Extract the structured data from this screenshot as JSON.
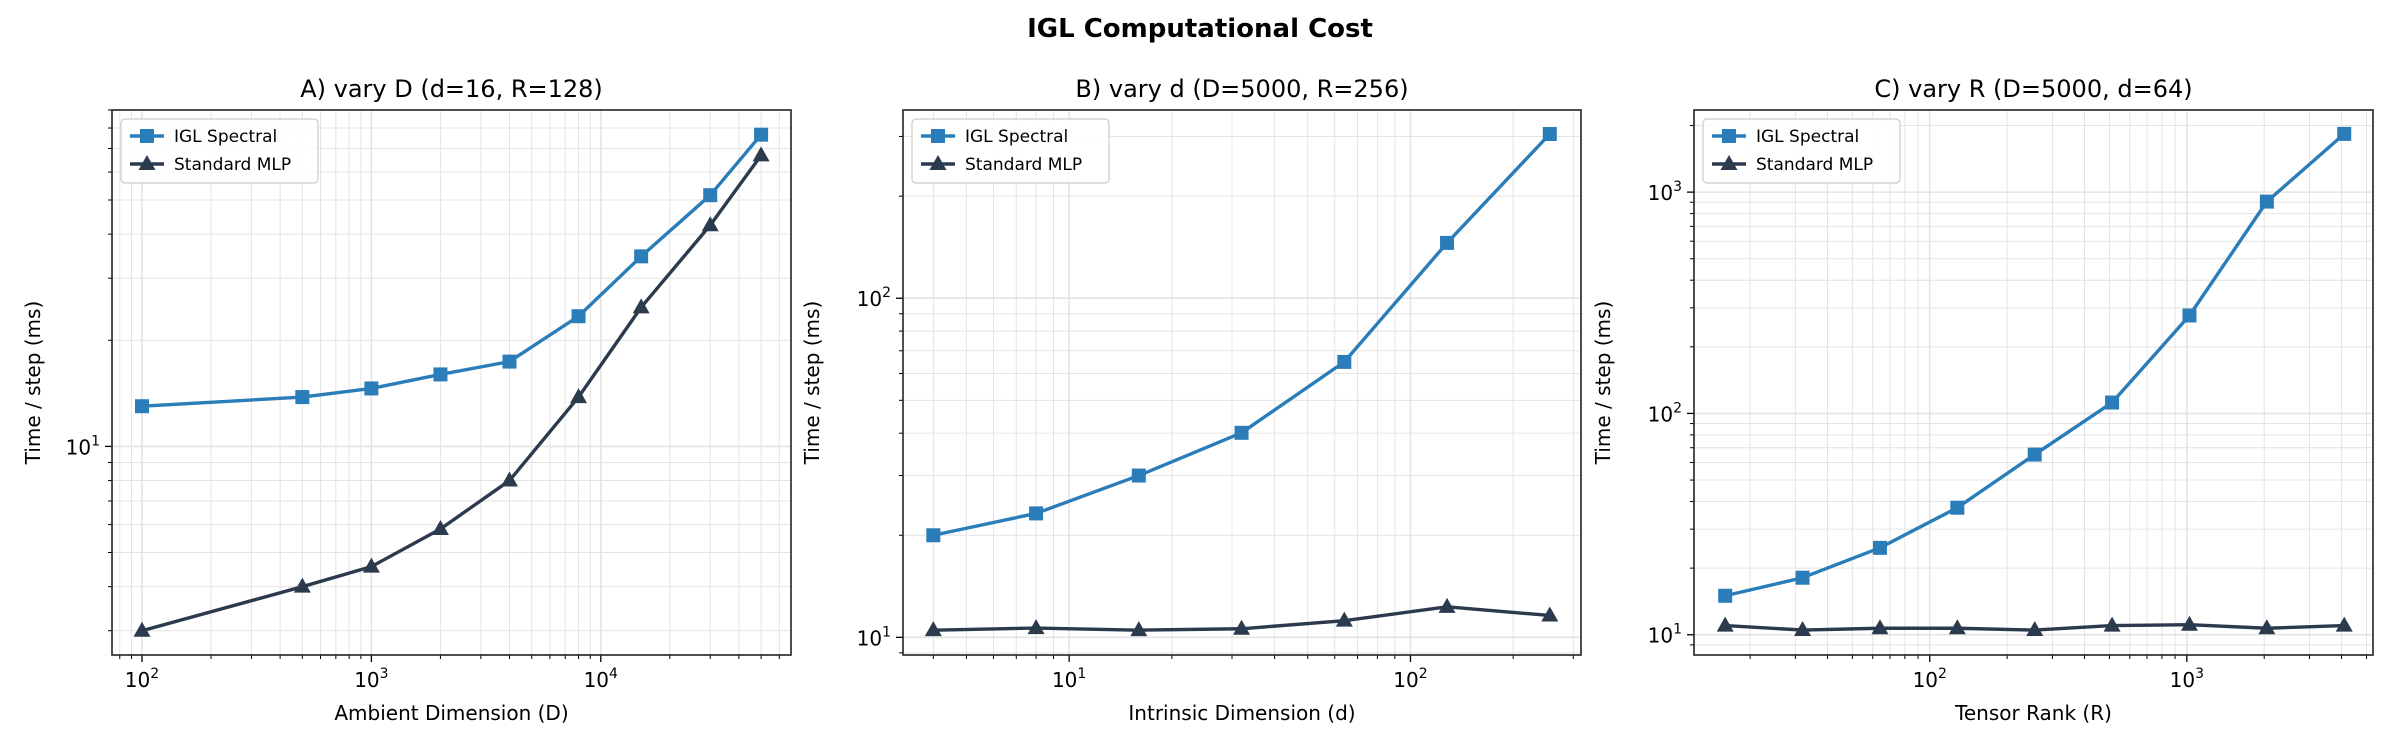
{
  "title": "IGL Computational Cost",
  "colors": {
    "igl": "#2a7db8",
    "mlp": "#2c3a4e",
    "grid": "#e4e4e4"
  },
  "legend": {
    "placement": "upper-left",
    "entries": [
      "IGL Spectral",
      "Standard MLP"
    ]
  },
  "chart_data": [
    {
      "type": "line",
      "title": "A) vary D  (d=16, R=128)",
      "xlabel": "Ambient Dimension (D)",
      "ylabel": "Time / step (ms)",
      "xscale": "log",
      "yscale": "log",
      "xlim": [
        74,
        67500
      ],
      "ylim": [
        2.56,
        90
      ],
      "xticks": [
        100,
        1000,
        10000
      ],
      "xtick_labels": [
        "10^2",
        "10^3",
        "10^4"
      ],
      "yticks": [
        10
      ],
      "ytick_labels": [
        "10^1"
      ],
      "grid": true,
      "x": [
        100,
        500,
        1000,
        2000,
        4000,
        8000,
        15000,
        30000,
        50000
      ],
      "series": [
        {
          "name": "IGL Spectral",
          "marker": "square",
          "values": [
            13.0,
            13.8,
            14.6,
            16.0,
            17.4,
            23.4,
            34.6,
            51.6,
            76.6
          ]
        },
        {
          "name": "Standard MLP",
          "marker": "triangle",
          "values": [
            3.0,
            4.0,
            4.56,
            5.83,
            8.0,
            13.8,
            24.8,
            42.4,
            66.9
          ]
        }
      ]
    },
    {
      "type": "line",
      "title": "B) vary d  (D=5000, R=256)",
      "xlabel": "Intrinsic Dimension (d)",
      "ylabel": "Time / step (ms)",
      "xscale": "log",
      "yscale": "log",
      "xlim": [
        3.26,
        316
      ],
      "ylim": [
        8.87,
        359
      ],
      "xticks": [
        10,
        100
      ],
      "xtick_labels": [
        "10^1",
        "10^2"
      ],
      "yticks": [
        10,
        100
      ],
      "ytick_labels": [
        "10^1",
        "10^2"
      ],
      "grid": true,
      "x": [
        4,
        8,
        16,
        32,
        64,
        128,
        256
      ],
      "series": [
        {
          "name": "IGL Spectral",
          "marker": "square",
          "values": [
            20.0,
            23.2,
            30.0,
            40.1,
            64.9,
            145.6,
            305
          ]
        },
        {
          "name": "Standard MLP",
          "marker": "triangle",
          "values": [
            10.5,
            10.65,
            10.5,
            10.6,
            11.2,
            12.3,
            11.6
          ]
        }
      ]
    },
    {
      "type": "line",
      "title": "C) vary R  (D=5000, d=64)",
      "xlabel": "Tensor Rank (R)",
      "ylabel": "Time / step (ms)",
      "xscale": "log",
      "yscale": "log",
      "xlim": [
        12.1,
        5300
      ],
      "ylim": [
        8.1,
        2350
      ],
      "xticks": [
        100,
        1000
      ],
      "xtick_labels": [
        "10^2",
        "10^3"
      ],
      "yticks": [
        10,
        100,
        1000
      ],
      "ytick_labels": [
        "10^1",
        "10^2",
        "10^3"
      ],
      "grid": true,
      "x": [
        16,
        32,
        64,
        128,
        256,
        512,
        1024,
        2048,
        4096
      ],
      "series": [
        {
          "name": "IGL Spectral",
          "marker": "square",
          "values": [
            15.0,
            18.1,
            24.7,
            37.5,
            65.2,
            112,
            277,
            906,
            1833
          ]
        },
        {
          "name": "Standard MLP",
          "marker": "triangle",
          "values": [
            11.0,
            10.5,
            10.7,
            10.7,
            10.5,
            11.0,
            11.1,
            10.7,
            11.0
          ]
        }
      ]
    }
  ]
}
